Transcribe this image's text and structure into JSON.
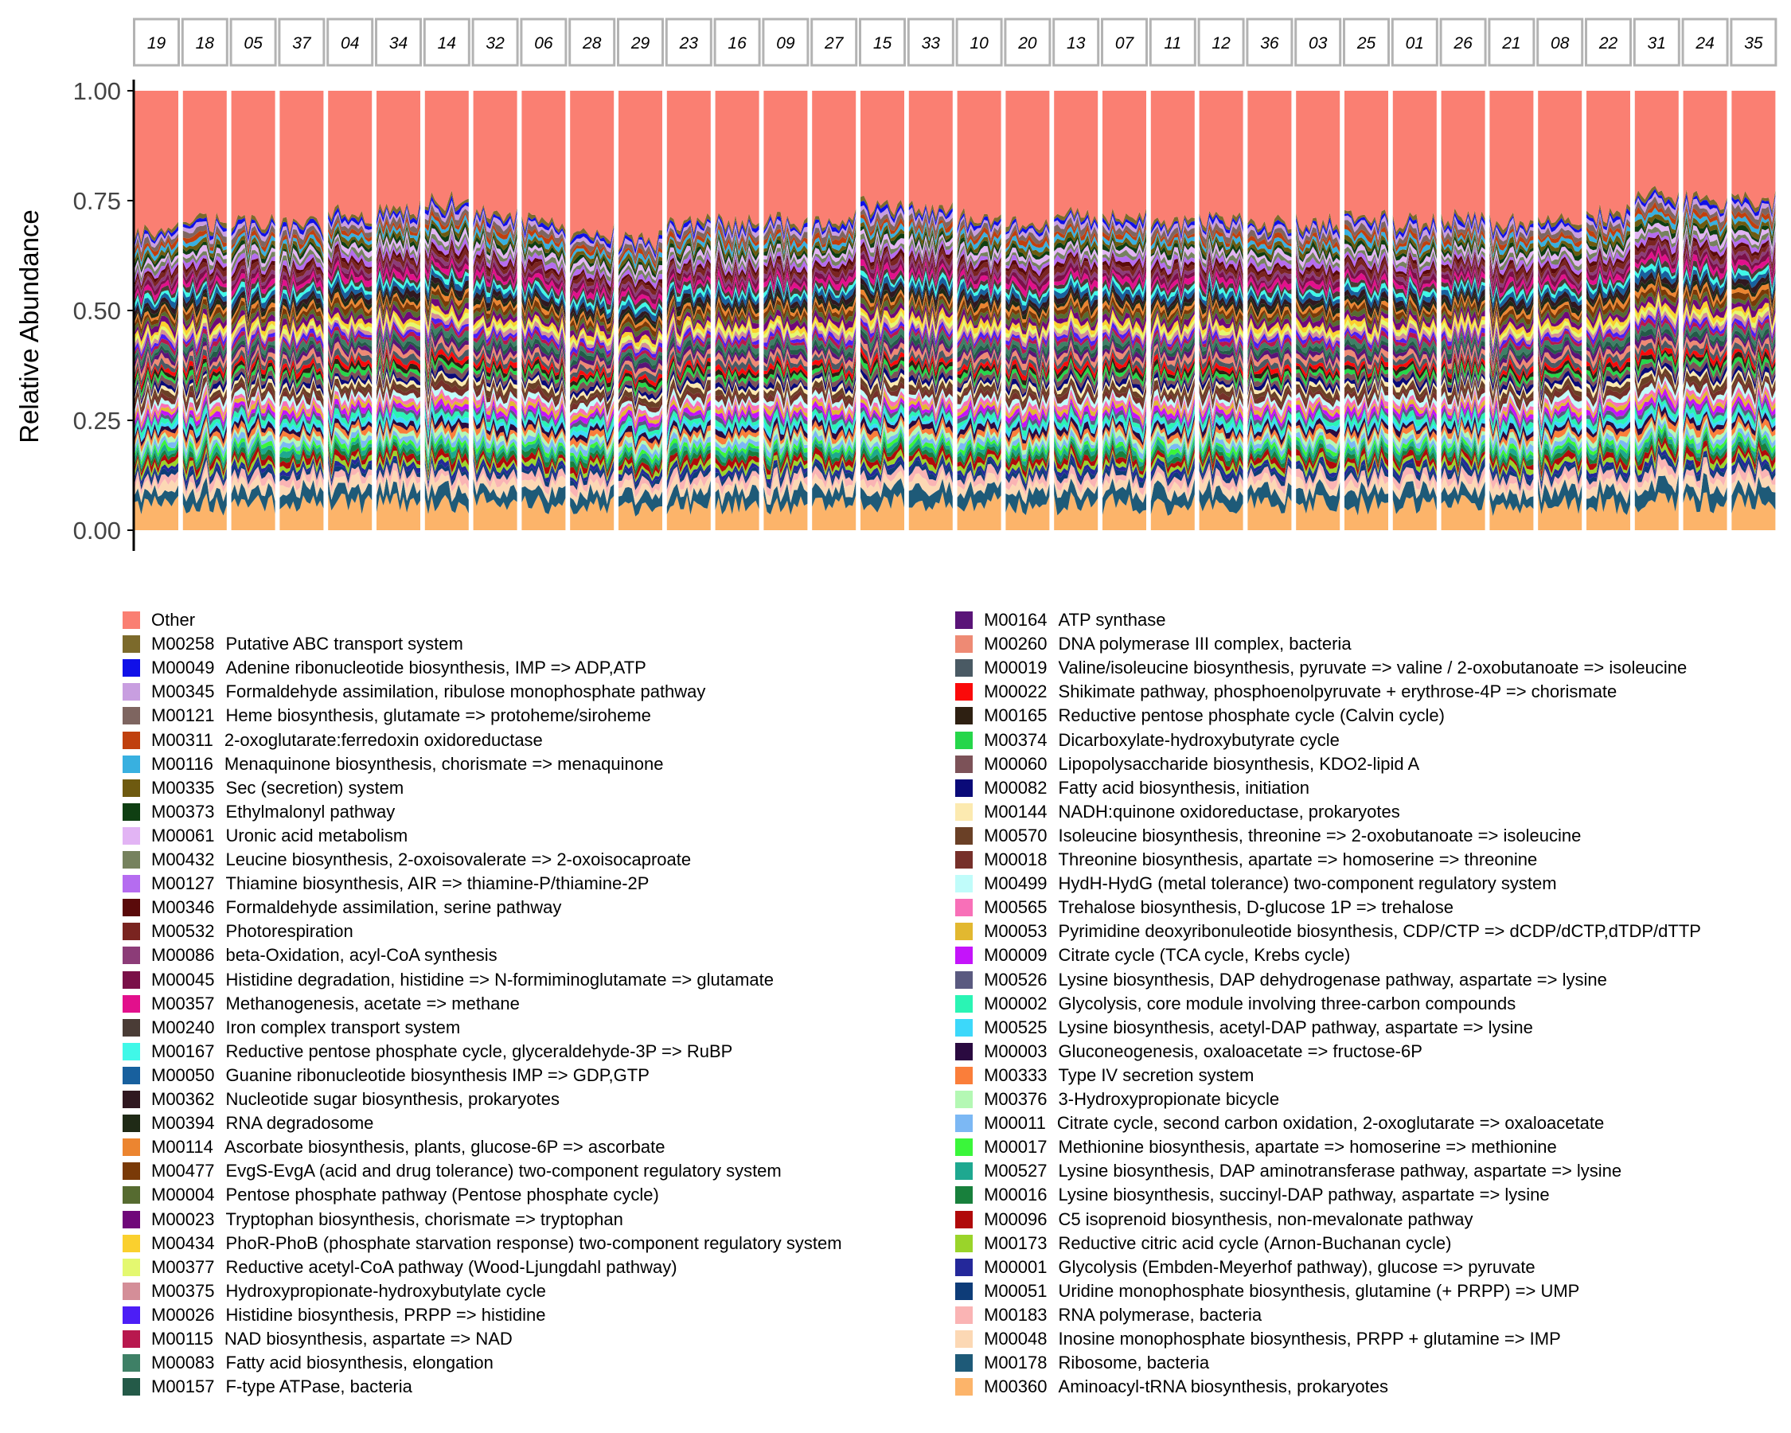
{
  "chart_data": {
    "type": "area",
    "title": "",
    "xlabel": "",
    "ylabel": "Relative Abundance",
    "ylim": [
      0,
      1
    ],
    "yticks": [
      "0.00",
      "0.25",
      "0.50",
      "0.75",
      "1.00"
    ],
    "facets": [
      "19",
      "18",
      "05",
      "37",
      "04",
      "34",
      "14",
      "32",
      "06",
      "28",
      "29",
      "23",
      "16",
      "09",
      "27",
      "15",
      "33",
      "10",
      "20",
      "13",
      "07",
      "11",
      "12",
      "36",
      "03",
      "25",
      "01",
      "26",
      "21",
      "08",
      "22",
      "31",
      "24",
      "35"
    ],
    "series_bottom_to_top_cumulative_levels": {
      "M00360": 0.06,
      "M00178": 0.09,
      "M00048": 0.11,
      "M00183": 0.125,
      "M00001_through_M00019": 0.55,
      "M00260_through_M00258": 0.68,
      "Other": 1.0
    },
    "facet_top_of_stack_before_other": [
      0.68,
      0.7,
      0.7,
      0.69,
      0.72,
      0.73,
      0.75,
      0.72,
      0.7,
      0.68,
      0.66,
      0.7,
      0.7,
      0.7,
      0.71,
      0.74,
      0.73,
      0.71,
      0.7,
      0.72,
      0.71,
      0.7,
      0.71,
      0.7,
      0.7,
      0.71,
      0.7,
      0.71,
      0.7,
      0.71,
      0.72,
      0.76,
      0.75,
      0.75
    ],
    "legend": [
      {
        "code": "Other",
        "name": "",
        "color": "#FA7F72"
      },
      {
        "code": "M00258",
        "name": "Putative ABC transport system",
        "color": "#7C6A2B"
      },
      {
        "code": "M00049",
        "name": "Adenine ribonucleotide biosynthesis, IMP => ADP,ATP",
        "color": "#1010E8"
      },
      {
        "code": "M00345",
        "name": "Formaldehyde assimilation, ribulose monophosphate  pathway",
        "color": "#C89EE0"
      },
      {
        "code": "M00121",
        "name": "Heme biosynthesis, glutamate => protoheme/siroheme",
        "color": "#7E6560"
      },
      {
        "code": "M00311",
        "name": "2-oxoglutarate:ferredoxin oxidoreductase",
        "color": "#C0400E"
      },
      {
        "code": "M00116",
        "name": "Menaquinone biosynthesis, chorismate => menaquinone",
        "color": "#38B0E0"
      },
      {
        "code": "M00335",
        "name": "Sec (secretion) system",
        "color": "#6E5A10"
      },
      {
        "code": "M00373",
        "name": "Ethylmalonyl pathway",
        "color": "#0F3F12"
      },
      {
        "code": "M00061",
        "name": "Uronic acid metabolism",
        "color": "#E2B4F4"
      },
      {
        "code": "M00432",
        "name": "Leucine biosynthesis, 2-oxoisovalerate => 2-oxoisocaproate",
        "color": "#76825E"
      },
      {
        "code": "M00127",
        "name": "Thiamine biosynthesis, AIR => thiamine-P/thiamine-2P",
        "color": "#B56CF0"
      },
      {
        "code": "M00346",
        "name": "Formaldehyde assimilation, serine pathway",
        "color": "#5A0A0A"
      },
      {
        "code": "M00532",
        "name": "Photorespiration",
        "color": "#7A2420"
      },
      {
        "code": "M00086",
        "name": "beta-Oxidation, acyl-CoA synthesis",
        "color": "#8C3C78"
      },
      {
        "code": "M00045",
        "name": "Histidine degradation, histidine => N-formiminoglutamate => glutamate",
        "color": "#7A1048"
      },
      {
        "code": "M00357",
        "name": "Methanogenesis, acetate => methane",
        "color": "#E2108C"
      },
      {
        "code": "M00240",
        "name": "Iron complex transport system",
        "color": "#4A3C36"
      },
      {
        "code": "M00167",
        "name": "Reductive pentose phosphate cycle, glyceraldehyde-3P => RuBP",
        "color": "#40F8E8"
      },
      {
        "code": "M00050",
        "name": "Guanine ribonucleotide biosynthesis IMP => GDP,GTP",
        "color": "#18609E"
      },
      {
        "code": "M00362",
        "name": "Nucleotide sugar biosynthesis, prokaryotes",
        "color": "#301820"
      },
      {
        "code": "M00394",
        "name": "RNA degradosome",
        "color": "#1F2A16"
      },
      {
        "code": "M00114",
        "name": "Ascorbate biosynthesis, plants, glucose-6P => ascorbate",
        "color": "#EC8530"
      },
      {
        "code": "M00477",
        "name": "EvgS-EvgA (acid and drug tolerance) two-component regulatory system",
        "color": "#7A3A08"
      },
      {
        "code": "M00004",
        "name": "Pentose phosphate pathway (Pentose phosphate cycle)",
        "color": "#566B30"
      },
      {
        "code": "M00023",
        "name": "Tryptophan biosynthesis, chorismate => tryptophan",
        "color": "#70087A"
      },
      {
        "code": "M00434",
        "name": "PhoR-PhoB (phosphate starvation response) two-component regulatory system",
        "color": "#FAD02E"
      },
      {
        "code": "M00377",
        "name": "Reductive acetyl-CoA pathway (Wood-Ljungdahl pathway)",
        "color": "#E4F870"
      },
      {
        "code": "M00375",
        "name": "Hydroxypropionate-hydroxybutylate cycle",
        "color": "#D48E98"
      },
      {
        "code": "M00026",
        "name": "Histidine biosynthesis, PRPP => histidine",
        "color": "#4C1EF6"
      },
      {
        "code": "M00115",
        "name": "NAD biosynthesis, aspartate => NAD",
        "color": "#B8184E"
      },
      {
        "code": "M00083",
        "name": "Fatty acid biosynthesis, elongation",
        "color": "#3E8066"
      },
      {
        "code": "M00157",
        "name": "F-type ATPase, bacteria",
        "color": "#245A48"
      },
      {
        "code": "M00164",
        "name": "ATP synthase",
        "color": "#5A1478"
      },
      {
        "code": "M00260",
        "name": "DNA polymerase III complex, bacteria",
        "color": "#EE8A74"
      },
      {
        "code": "M00019",
        "name": "Valine/isoleucine biosynthesis, pyruvate => valine / 2-oxobutanoate => isoleucine",
        "color": "#4A5A64"
      },
      {
        "code": "M00022",
        "name": "Shikimate pathway, phosphoenolpyruvate + erythrose-4P => chorismate",
        "color": "#FA0A0A"
      },
      {
        "code": "M00165",
        "name": "Reductive pentose phosphate cycle (Calvin cycle)",
        "color": "#2E2012"
      },
      {
        "code": "M00374",
        "name": "Dicarboxylate-hydroxybutyrate cycle",
        "color": "#26D64A"
      },
      {
        "code": "M00060",
        "name": "Lipopolysaccharide biosynthesis, KDO2-lipid A",
        "color": "#7C5258"
      },
      {
        "code": "M00082",
        "name": "Fatty acid biosynthesis, initiation",
        "color": "#0A0A78"
      },
      {
        "code": "M00144",
        "name": "NADH:quinone oxidoreductase, prokaryotes",
        "color": "#FCEAB0"
      },
      {
        "code": "M00570",
        "name": "Isoleucine biosynthesis, threonine => 2-oxobutanoate => isoleucine",
        "color": "#6A4026"
      },
      {
        "code": "M00018",
        "name": "Threonine biosynthesis, apartate => homoserine => threonine",
        "color": "#76302A"
      },
      {
        "code": "M00499",
        "name": "HydH-HydG (metal tolerance) two-component regulatory system",
        "color": "#C0FCFA"
      },
      {
        "code": "M00565",
        "name": "Trehalose biosynthesis, D-glucose 1P => trehalose",
        "color": "#F870B8"
      },
      {
        "code": "M00053",
        "name": "Pyrimidine deoxyribonuleotide biosynthesis, CDP/CTP => dCDP/dCTP,dTDP/dTTP",
        "color": "#E2B830"
      },
      {
        "code": "M00009",
        "name": "Citrate cycle (TCA cycle, Krebs cycle)",
        "color": "#C414FA"
      },
      {
        "code": "M00526",
        "name": "Lysine biosynthesis, DAP dehydrogenase pathway, aspartate => lysine",
        "color": "#5A5A80"
      },
      {
        "code": "M00002",
        "name": "Glycolysis, core module involving three-carbon compounds",
        "color": "#2AF4B4"
      },
      {
        "code": "M00525",
        "name": "Lysine biosynthesis, acetyl-DAP pathway, aspartate => lysine",
        "color": "#3CD8FA"
      },
      {
        "code": "M00003",
        "name": "Gluconeogenesis, oxaloacetate => fructose-6P",
        "color": "#2A0A40"
      },
      {
        "code": "M00333",
        "name": "Type IV secretion system",
        "color": "#FA7E3A"
      },
      {
        "code": "M00376",
        "name": "3-Hydroxypropionate bicycle",
        "color": "#B4F8B4"
      },
      {
        "code": "M00011",
        "name": "Citrate cycle, second carbon oxidation, 2-oxoglutarate => oxaloacetate",
        "color": "#7CB8F4"
      },
      {
        "code": "M00017",
        "name": "Methionine biosynthesis, apartate => homoserine => methionine",
        "color": "#3AF63A"
      },
      {
        "code": "M00527",
        "name": "Lysine biosynthesis, DAP aminotransferase pathway, aspartate => lysine",
        "color": "#1EA890"
      },
      {
        "code": "M00016",
        "name": "Lysine biosynthesis, succinyl-DAP pathway, aspartate => lysine",
        "color": "#18803C"
      },
      {
        "code": "M00096",
        "name": "C5 isoprenoid biosynthesis, non-mevalonate pathway",
        "color": "#B00A0A"
      },
      {
        "code": "M00173",
        "name": "Reductive citric acid cycle (Arnon-Buchanan cycle)",
        "color": "#9AD42A"
      },
      {
        "code": "M00001",
        "name": "Glycolysis (Embden-Meyerhof pathway), glucose => pyruvate",
        "color": "#24289A"
      },
      {
        "code": "M00051",
        "name": "Uridine monophosphate biosynthesis, glutamine (+ PRPP) => UMP",
        "color": "#0E3C78"
      },
      {
        "code": "M00183",
        "name": "RNA polymerase, bacteria",
        "color": "#FAB4B4"
      },
      {
        "code": "M00048",
        "name": "Inosine monophosphate biosynthesis, PRPP + glutamine => IMP",
        "color": "#FCD8B4"
      },
      {
        "code": "M00178",
        "name": "Ribosome, bacteria",
        "color": "#1E5A78"
      },
      {
        "code": "M00360",
        "name": "Aminoacyl-tRNA biosynthesis, prokaryotes",
        "color": "#FCB46A"
      }
    ]
  }
}
